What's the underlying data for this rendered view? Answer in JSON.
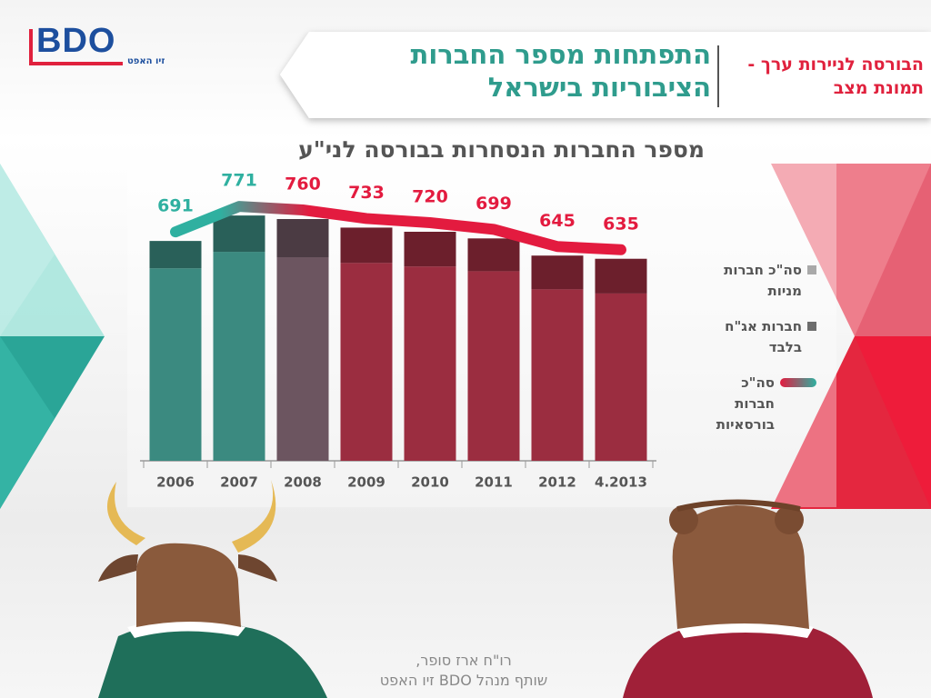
{
  "logo": {
    "brand": "BDO",
    "subtitle": "זיו האפט"
  },
  "header": {
    "section": "הבורסה לניירות ערך - תמונת מצב",
    "title": "התפתחות מספר החברות הציבוריות בישראל"
  },
  "chart_data": {
    "type": "bar",
    "title": "מספר החברות הנסחרות בבורסה לני\"ע",
    "categories": [
      "2006",
      "2007",
      "2008",
      "2009",
      "2010",
      "2011",
      "2012",
      "4.2013"
    ],
    "series": [
      {
        "name": "סה\"כ חברות מניות",
        "type": "bar",
        "color": "#a9a9a9",
        "shade": 0,
        "values": [
          605,
          657,
          640,
          622,
          611,
          596,
          539,
          526
        ]
      },
      {
        "name": "חברות אג\"ח בלבד",
        "type": "bar",
        "color": "#6d6d6d",
        "shade": 0.3,
        "values": [
          86,
          114,
          120,
          111,
          109,
          103,
          106,
          109
        ]
      },
      {
        "name": "סה\"כ חברות בורסאיות",
        "type": "line",
        "color": "#e31b3f",
        "gradient_start": "#2fb0a0",
        "values": [
          691,
          771,
          760,
          733,
          720,
          699,
          645,
          635
        ]
      }
    ],
    "bar_colors": [
      "#3b8a80",
      "#3b8a80",
      "#6c5560",
      "#9b2d40",
      "#9b2d40",
      "#9b2d40",
      "#9b2d40",
      "#9b2d40"
    ],
    "ylim": [
      0,
      800
    ],
    "stacked": true,
    "legend": "right"
  },
  "footer": {
    "line1": "רו\"ח ארז סופר,",
    "line2": "שותף מנהל BDO זיו האפט"
  }
}
